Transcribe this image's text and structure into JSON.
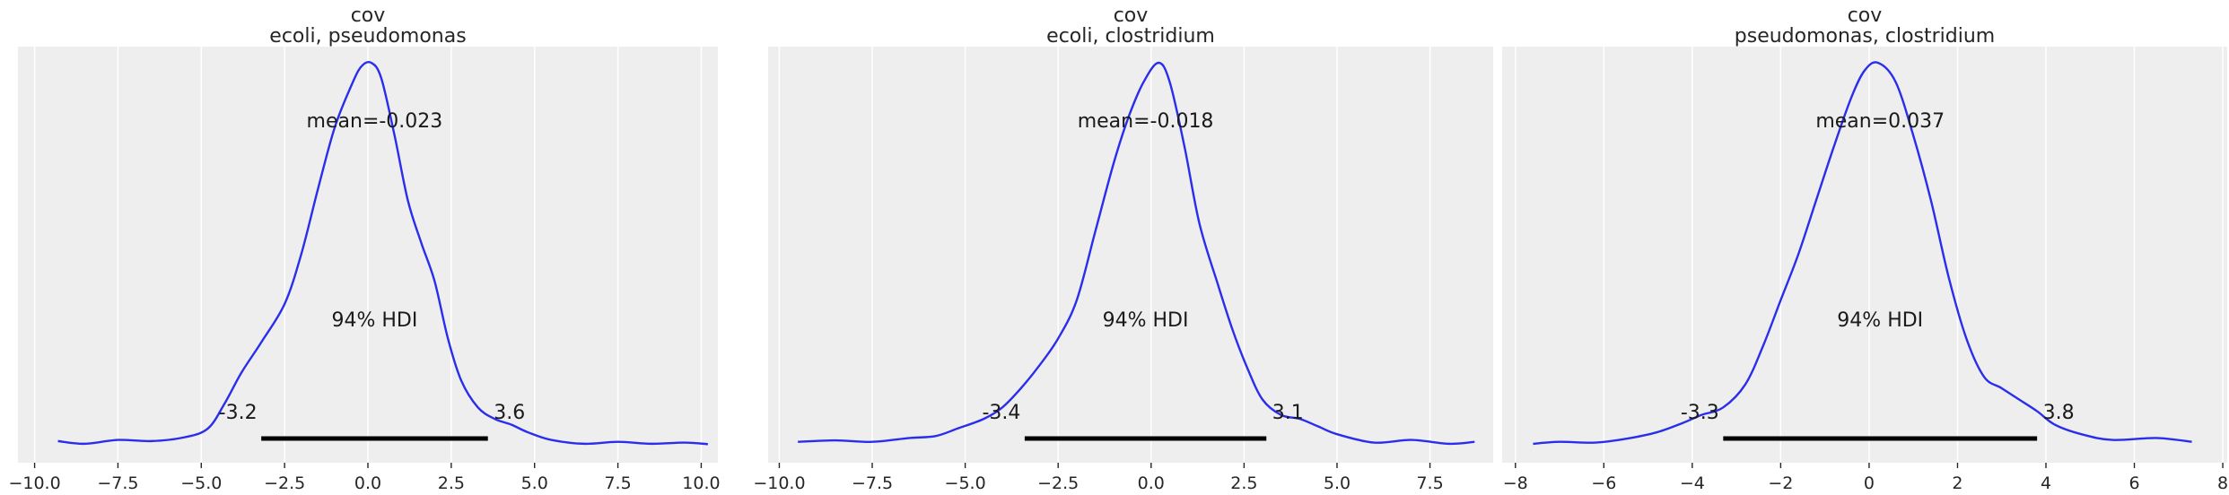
{
  "chart_data": [
    {
      "type": "line",
      "title_lines": [
        "cov",
        "ecoli, pseudomonas"
      ],
      "mean_label": "mean=-0.023",
      "hdi_label": "94% HDI",
      "hdi_low": -3.2,
      "hdi_high": 3.6,
      "hdi_low_label": "-3.2",
      "hdi_high_label": "3.6",
      "xlim": [
        -10.5,
        10.5
      ],
      "xticks": [
        -10.0,
        -7.5,
        -5.0,
        -2.5,
        0.0,
        2.5,
        5.0,
        7.5,
        10.0
      ],
      "xtick_labels": [
        "−10.0",
        "−7.5",
        "−5.0",
        "−2.5",
        "0.0",
        "2.5",
        "5.0",
        "7.5",
        "10.0"
      ],
      "x": [
        -9.3,
        -8.5,
        -7.5,
        -6.5,
        -5.5,
        -4.8,
        -4.3,
        -3.8,
        -3.2,
        -2.5,
        -2.0,
        -1.5,
        -1.0,
        -0.5,
        -0.2,
        0.1,
        0.4,
        0.8,
        1.2,
        1.6,
        2.0,
        2.4,
        2.8,
        3.3,
        3.8,
        4.3,
        4.8,
        5.5,
        6.5,
        7.5,
        8.5,
        9.5,
        10.2
      ],
      "density": [
        0.012,
        0.005,
        0.015,
        0.012,
        0.022,
        0.045,
        0.11,
        0.19,
        0.27,
        0.37,
        0.5,
        0.67,
        0.83,
        0.94,
        0.99,
        1.0,
        0.96,
        0.81,
        0.64,
        0.53,
        0.43,
        0.28,
        0.17,
        0.1,
        0.07,
        0.055,
        0.035,
        0.015,
        0.005,
        0.01,
        0.005,
        0.008,
        0.004
      ]
    },
    {
      "type": "line",
      "title_lines": [
        "cov",
        "ecoli, clostridium"
      ],
      "mean_label": "mean=-0.018",
      "hdi_label": "94% HDI",
      "hdi_low": -3.4,
      "hdi_high": 3.1,
      "hdi_low_label": "-3.4",
      "hdi_high_label": "3.1",
      "xlim": [
        -10.3,
        9.2
      ],
      "xticks": [
        -10.0,
        -7.5,
        -5.0,
        -2.5,
        0.0,
        2.5,
        5.0,
        7.5
      ],
      "xtick_labels": [
        "−10.0",
        "−7.5",
        "−5.0",
        "−2.5",
        "0.0",
        "2.5",
        "5.0",
        "7.5"
      ],
      "x": [
        -9.5,
        -8.5,
        -7.5,
        -6.5,
        -5.8,
        -5.2,
        -4.5,
        -4.0,
        -3.5,
        -3.0,
        -2.5,
        -2.0,
        -1.5,
        -1.0,
        -0.6,
        -0.2,
        0.2,
        0.5,
        0.9,
        1.3,
        1.8,
        2.2,
        2.6,
        3.0,
        3.5,
        4.0,
        4.5,
        5.0,
        6.0,
        7.0,
        8.0,
        8.7
      ],
      "density": [
        0.01,
        0.014,
        0.01,
        0.02,
        0.025,
        0.045,
        0.07,
        0.1,
        0.15,
        0.21,
        0.28,
        0.38,
        0.56,
        0.74,
        0.86,
        0.95,
        1.0,
        0.95,
        0.78,
        0.58,
        0.42,
        0.3,
        0.2,
        0.12,
        0.08,
        0.07,
        0.05,
        0.03,
        0.008,
        0.015,
        0.005,
        0.01
      ]
    },
    {
      "type": "line",
      "title_lines": [
        "cov",
        "pseudomonas, clostridium"
      ],
      "mean_label": "mean=0.037",
      "hdi_label": "94% HDI",
      "hdi_low": -3.3,
      "hdi_high": 3.8,
      "hdi_low_label": "-3.3",
      "hdi_high_label": "3.8",
      "xlim": [
        -8.3,
        8.1
      ],
      "xticks": [
        -8,
        -6,
        -4,
        -2,
        0,
        2,
        4,
        6,
        8
      ],
      "xtick_labels": [
        "−8",
        "−6",
        "−4",
        "−2",
        "0",
        "2",
        "4",
        "6",
        "8"
      ],
      "x": [
        -7.6,
        -7.0,
        -6.2,
        -5.5,
        -4.8,
        -4.2,
        -3.8,
        -3.3,
        -2.8,
        -2.4,
        -2.0,
        -1.6,
        -1.2,
        -0.8,
        -0.4,
        -0.1,
        0.2,
        0.6,
        1.0,
        1.4,
        1.8,
        2.2,
        2.6,
        3.0,
        3.4,
        3.8,
        4.2,
        4.8,
        5.5,
        6.5,
        7.3
      ],
      "density": [
        0.005,
        0.01,
        0.008,
        0.018,
        0.035,
        0.06,
        0.08,
        0.1,
        0.16,
        0.26,
        0.38,
        0.5,
        0.64,
        0.78,
        0.91,
        0.98,
        1.0,
        0.95,
        0.81,
        0.64,
        0.44,
        0.28,
        0.18,
        0.15,
        0.12,
        0.09,
        0.055,
        0.03,
        0.015,
        0.02,
        0.01
      ]
    }
  ]
}
